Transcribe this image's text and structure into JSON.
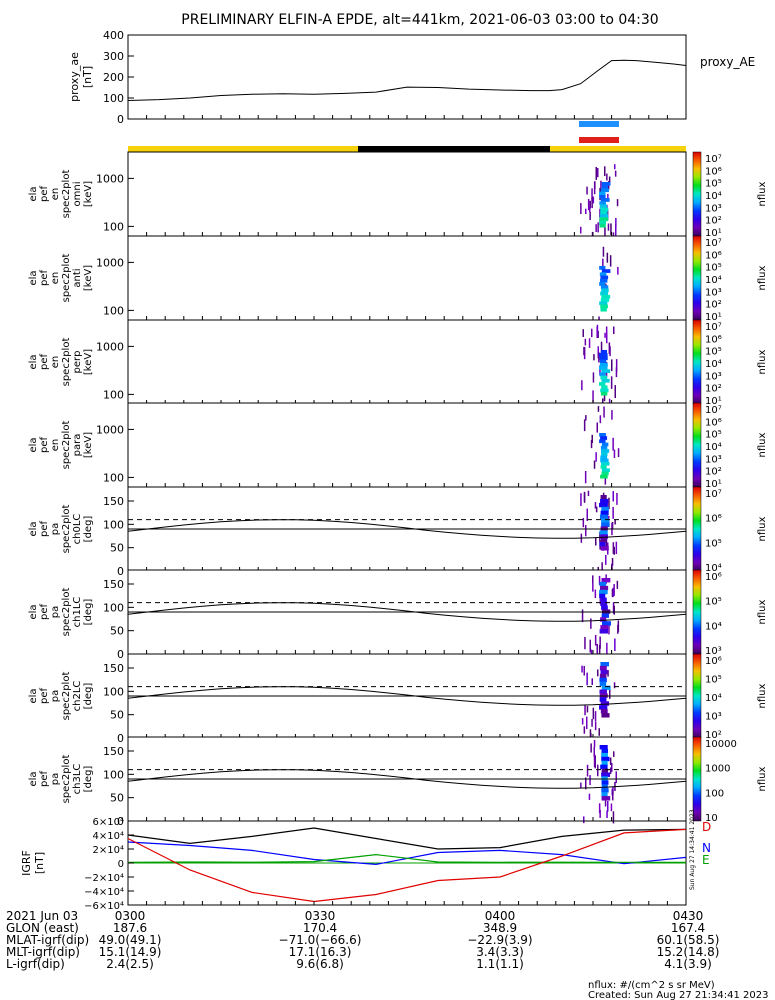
{
  "title": "PRELIMINARY ELFIN-A EPDE, alt=441km, 2021-06-03 03:00 to 04:30",
  "colors": {
    "gold": "#f5d20a",
    "black": "#000000",
    "blue_bar": "#1e90ff",
    "red_bar": "#e0201a"
  },
  "chart_data": [
    {
      "type": "line",
      "panel": "proxy_ae",
      "ylabel": "proxy_ae [nT]",
      "legend": "proxy_AE",
      "ylim": [
        0,
        400
      ],
      "yticks": [
        "400",
        "300",
        "200",
        "100",
        "0"
      ],
      "x": [
        "03:00",
        "03:05",
        "03:10",
        "03:15",
        "03:20",
        "03:25",
        "03:30",
        "03:35",
        "03:40",
        "03:45",
        "03:50",
        "03:55",
        "04:00",
        "04:05",
        "04:08",
        "04:10",
        "04:13",
        "04:16",
        "04:18",
        "04:20",
        "04:22",
        "04:25",
        "04:28",
        "04:30"
      ],
      "values": [
        88,
        92,
        100,
        112,
        118,
        120,
        118,
        122,
        128,
        152,
        150,
        142,
        138,
        135,
        135,
        140,
        168,
        235,
        278,
        280,
        278,
        270,
        262,
        255
      ]
    },
    {
      "type": "heatmap",
      "panel": "ela_pef_en_spec2plot_omni",
      "ylabel": "ela pef en spec2plot omni [keV]",
      "yscale": "log",
      "yticks": [
        "1000",
        "100"
      ],
      "colorbar": {
        "label": "nflux",
        "ticks": [
          "10⁷",
          "10⁶",
          "10⁵",
          "10⁴",
          "10³",
          "10²",
          "10¹"
        ]
      }
    },
    {
      "type": "heatmap",
      "panel": "ela_pef_en_spec2plot_anti",
      "ylabel": "ela pef en spec2plot anti [keV]",
      "yscale": "log",
      "yticks": [
        "1000",
        "100"
      ],
      "colorbar": {
        "label": "nflux",
        "ticks": [
          "10⁷",
          "10⁶",
          "10⁵",
          "10⁴",
          "10³",
          "10²",
          "10¹"
        ]
      }
    },
    {
      "type": "heatmap",
      "panel": "ela_pef_en_spec2plot_perp",
      "ylabel": "ela pef en spec2plot perp [keV]",
      "yscale": "log",
      "yticks": [
        "1000",
        "100"
      ],
      "colorbar": {
        "label": "nflux",
        "ticks": [
          "10⁷",
          "10⁶",
          "10⁵",
          "10⁴",
          "10³",
          "10²",
          "10¹"
        ]
      }
    },
    {
      "type": "heatmap",
      "panel": "ela_pef_en_spec2plot_para",
      "ylabel": "ela pef en spec2plot para [keV]",
      "yscale": "log",
      "yticks": [
        "1000",
        "100"
      ],
      "colorbar": {
        "label": "nflux",
        "ticks": [
          "10⁷",
          "10⁶",
          "10⁵",
          "10⁴",
          "10³",
          "10²",
          "10¹"
        ]
      }
    },
    {
      "type": "heatmap",
      "panel": "ela_pef_pa_spec2plot_ch0LC",
      "ylabel": "ela pef pa spec2plot ch0LC [deg]",
      "ylim": [
        0,
        180
      ],
      "yticks": [
        "150",
        "100",
        "50",
        "0"
      ],
      "colorbar": {
        "label": "nflux",
        "ticks": [
          "10⁷",
          "10⁶",
          "10⁵",
          "10⁴"
        ]
      }
    },
    {
      "type": "heatmap",
      "panel": "ela_pef_pa_spec2plot_ch1LC",
      "ylabel": "ela pef pa spec2plot ch1LC [deg]",
      "ylim": [
        0,
        180
      ],
      "yticks": [
        "150",
        "100",
        "50",
        "0"
      ],
      "colorbar": {
        "label": "nflux",
        "ticks": [
          "10⁶",
          "10⁵",
          "10⁴",
          "10³"
        ]
      }
    },
    {
      "type": "heatmap",
      "panel": "ela_pef_pa_spec2plot_ch2LC",
      "ylabel": "ela pef pa spec2plot ch2LC [deg]",
      "ylim": [
        0,
        180
      ],
      "yticks": [
        "150",
        "100",
        "50",
        "0"
      ],
      "colorbar": {
        "label": "nflux",
        "ticks": [
          "10⁶",
          "10⁵",
          "10⁴",
          "10³",
          "10²"
        ]
      }
    },
    {
      "type": "heatmap",
      "panel": "ela_pef_pa_spec2plot_ch3LC",
      "ylabel": "ela pef pa spec2plot ch3LC [deg]",
      "ylim": [
        0,
        180
      ],
      "yticks": [
        "150",
        "100",
        "50",
        "0"
      ],
      "colorbar": {
        "label": "nflux",
        "ticks": [
          "10000",
          "1000",
          "100",
          "10"
        ]
      }
    },
    {
      "type": "line",
      "panel": "IGRF",
      "ylabel": "IGRF [nT]",
      "ylim": [
        -60000,
        60000
      ],
      "yticks": [
        "6×10⁴",
        "4×10⁴",
        "2×10⁴",
        "0",
        "−2×10⁴",
        "−4×10⁴",
        "−6×10⁴"
      ],
      "x": [
        "03:00",
        "03:10",
        "03:20",
        "03:30",
        "03:40",
        "03:50",
        "04:00",
        "04:10",
        "04:20",
        "04:30"
      ],
      "series": [
        {
          "name": "D",
          "color": "#000000",
          "values": [
            40000,
            28000,
            38000,
            50000,
            35000,
            20000,
            22000,
            38000,
            47000,
            48000
          ]
        },
        {
          "name": "N",
          "color": "#0000ff",
          "values": [
            30000,
            25000,
            18000,
            5000,
            -2000,
            15000,
            18000,
            12000,
            -1000,
            8000
          ]
        },
        {
          "name": "E",
          "color": "#00a000",
          "values": [
            1000,
            1500,
            1200,
            2000,
            12000,
            1500,
            1000,
            1200,
            1000,
            1000
          ]
        },
        {
          "name": "",
          "color": "#e00000",
          "values": [
            35000,
            -10000,
            -42000,
            -55000,
            -45000,
            -25000,
            -20000,
            10000,
            43000,
            48000
          ]
        }
      ]
    }
  ],
  "footer": {
    "rows": [
      {
        "label": "2021 Jun 03",
        "values": [
          "0300",
          "0330",
          "0400",
          "0430"
        ]
      },
      {
        "label": "GLON (east)",
        "values": [
          "187.6",
          "170.4",
          "348.9",
          "167.4"
        ]
      },
      {
        "label": "MLAT-igrf(dip)",
        "values": [
          "49.0(49.1)",
          "−71.0(−66.6)",
          "−22.9(3.9)",
          "60.1(58.5)"
        ]
      },
      {
        "label": "MLT-igrf(dip)",
        "values": [
          "15.1(14.9)",
          "17.1(16.3)",
          "3.4(3.3)",
          "15.2(14.8)"
        ]
      },
      {
        "label": "L-igrf(dip)",
        "values": [
          "2.4(2.5)",
          "9.6(6.8)",
          "1.1(1.1)",
          "4.1(3.9)"
        ]
      }
    ],
    "units_note": "nflux: #/(cm^2 s sr MeV)",
    "created": "Created: Sun Aug 27 21:34:41 2023",
    "side_stamp": "Sun Aug 27 14:34:41 2023"
  }
}
